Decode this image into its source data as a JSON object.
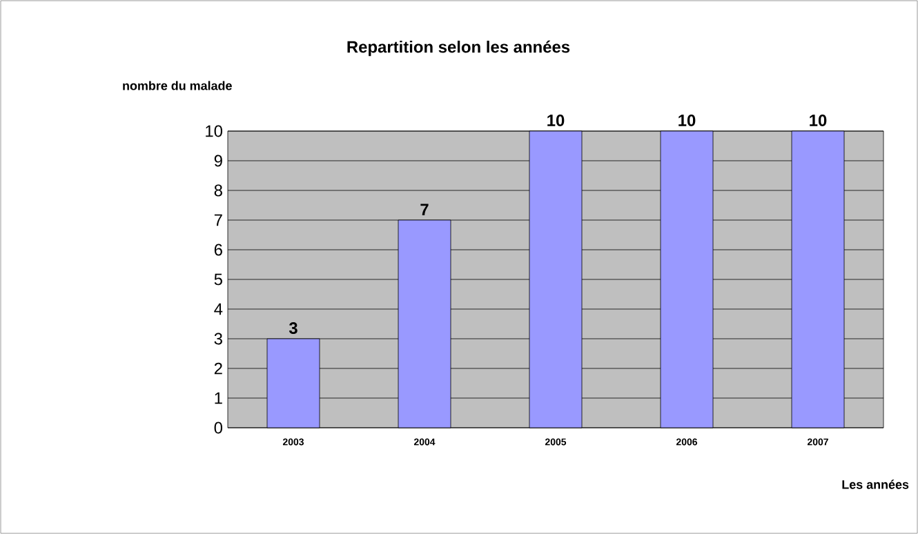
{
  "chart_data": {
    "type": "bar",
    "title": "Repartition selon les années",
    "xlabel": "Les années",
    "ylabel": "nombre du malade",
    "categories": [
      "2003",
      "2004",
      "2005",
      "2006",
      "2007"
    ],
    "values": [
      3,
      7,
      10,
      10,
      10
    ],
    "color": "#9999ff",
    "ylim": [
      0,
      10
    ],
    "yticks": [
      0,
      1,
      2,
      3,
      4,
      5,
      6,
      7,
      8,
      9,
      10
    ],
    "grid": "y",
    "data_labels": true
  }
}
